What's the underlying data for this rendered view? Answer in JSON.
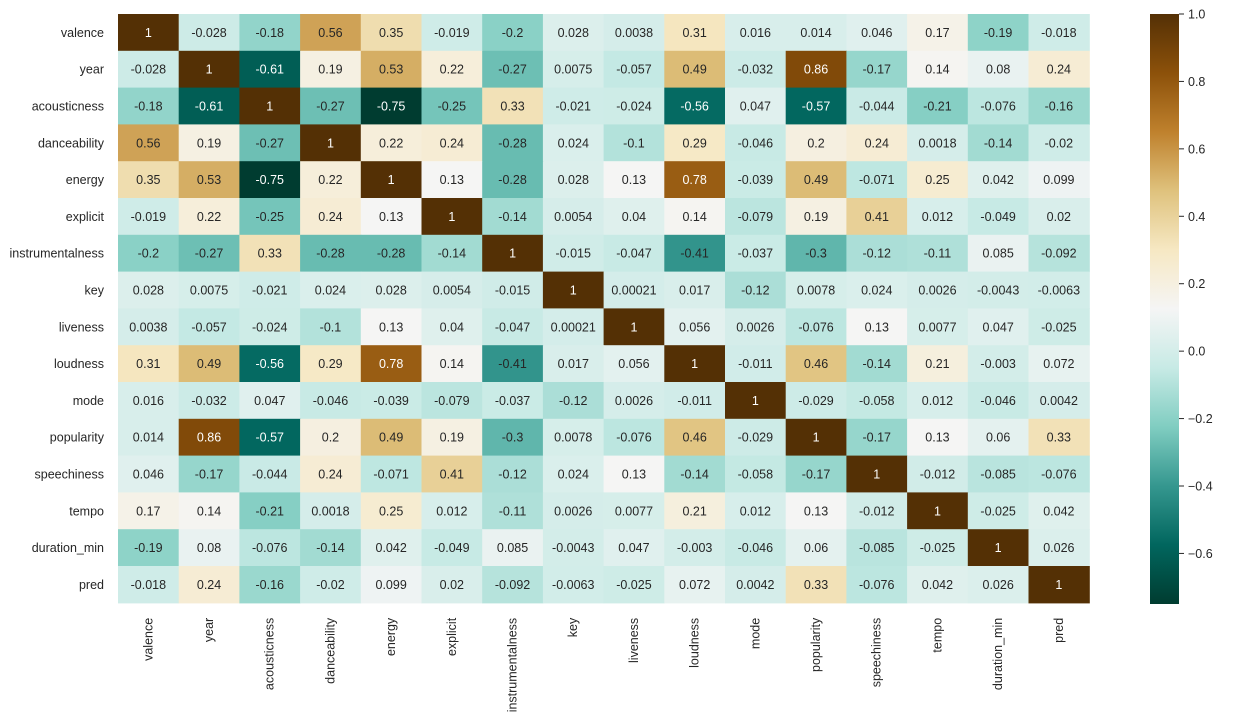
{
  "chart_data": {
    "type": "heatmap",
    "title": "",
    "colormap": "BrBG_r",
    "vmin": -0.75,
    "vmax": 1.0,
    "annotated": true,
    "legend": "colorbar-right",
    "labels": [
      "valence",
      "year",
      "acousticness",
      "danceability",
      "energy",
      "explicit",
      "instrumentalness",
      "key",
      "liveness",
      "loudness",
      "mode",
      "popularity",
      "speechiness",
      "tempo",
      "duration_min",
      "pred"
    ],
    "matrix": [
      [
        "1",
        "-0.028",
        "-0.18",
        "0.56",
        "0.35",
        "-0.019",
        "-0.2",
        "0.028",
        "0.0038",
        "0.31",
        "0.016",
        "0.014",
        "0.046",
        "0.17",
        "-0.19",
        "-0.018"
      ],
      [
        "-0.028",
        "1",
        "-0.61",
        "0.19",
        "0.53",
        "0.22",
        "-0.27",
        "0.0075",
        "-0.057",
        "0.49",
        "-0.032",
        "0.86",
        "-0.17",
        "0.14",
        "0.08",
        "0.24"
      ],
      [
        "-0.18",
        "-0.61",
        "1",
        "-0.27",
        "-0.75",
        "-0.25",
        "0.33",
        "-0.021",
        "-0.024",
        "-0.56",
        "0.047",
        "-0.57",
        "-0.044",
        "-0.21",
        "-0.076",
        "-0.16"
      ],
      [
        "0.56",
        "0.19",
        "-0.27",
        "1",
        "0.22",
        "0.24",
        "-0.28",
        "0.024",
        "-0.1",
        "0.29",
        "-0.046",
        "0.2",
        "0.24",
        "0.0018",
        "-0.14",
        "-0.02"
      ],
      [
        "0.35",
        "0.53",
        "-0.75",
        "0.22",
        "1",
        "0.13",
        "-0.28",
        "0.028",
        "0.13",
        "0.78",
        "-0.039",
        "0.49",
        "-0.071",
        "0.25",
        "0.042",
        "0.099"
      ],
      [
        "-0.019",
        "0.22",
        "-0.25",
        "0.24",
        "0.13",
        "1",
        "-0.14",
        "0.0054",
        "0.04",
        "0.14",
        "-0.079",
        "0.19",
        "0.41",
        "0.012",
        "-0.049",
        "0.02"
      ],
      [
        "-0.2",
        "-0.27",
        "0.33",
        "-0.28",
        "-0.28",
        "-0.14",
        "1",
        "-0.015",
        "-0.047",
        "-0.41",
        "-0.037",
        "-0.3",
        "-0.12",
        "-0.11",
        "0.085",
        "-0.092"
      ],
      [
        "0.028",
        "0.0075",
        "-0.021",
        "0.024",
        "0.028",
        "0.0054",
        "-0.015",
        "1",
        "0.00021",
        "0.017",
        "-0.12",
        "0.0078",
        "0.024",
        "0.0026",
        "-0.0043",
        "-0.0063"
      ],
      [
        "0.0038",
        "-0.057",
        "-0.024",
        "-0.1",
        "0.13",
        "0.04",
        "-0.047",
        "0.00021",
        "1",
        "0.056",
        "0.0026",
        "-0.076",
        "0.13",
        "0.0077",
        "0.047",
        "-0.025"
      ],
      [
        "0.31",
        "0.49",
        "-0.56",
        "0.29",
        "0.78",
        "0.14",
        "-0.41",
        "0.017",
        "0.056",
        "1",
        "-0.011",
        "0.46",
        "-0.14",
        "0.21",
        "-0.003",
        "0.072"
      ],
      [
        "0.016",
        "-0.032",
        "0.047",
        "-0.046",
        "-0.039",
        "-0.079",
        "-0.037",
        "-0.12",
        "0.0026",
        "-0.011",
        "1",
        "-0.029",
        "-0.058",
        "0.012",
        "-0.046",
        "0.0042"
      ],
      [
        "0.014",
        "0.86",
        "-0.57",
        "0.2",
        "0.49",
        "0.19",
        "-0.3",
        "0.0078",
        "-0.076",
        "0.46",
        "-0.029",
        "1",
        "-0.17",
        "0.13",
        "0.06",
        "0.33"
      ],
      [
        "0.046",
        "-0.17",
        "-0.044",
        "0.24",
        "-0.071",
        "0.41",
        "-0.12",
        "0.024",
        "0.13",
        "-0.14",
        "-0.058",
        "-0.17",
        "1",
        "-0.012",
        "-0.085",
        "-0.076"
      ],
      [
        "0.17",
        "0.14",
        "-0.21",
        "0.0018",
        "0.25",
        "0.012",
        "-0.11",
        "0.0026",
        "0.0077",
        "0.21",
        "0.012",
        "0.13",
        "-0.012",
        "1",
        "-0.025",
        "0.042"
      ],
      [
        "-0.19",
        "0.08",
        "-0.076",
        "-0.14",
        "0.042",
        "-0.049",
        "0.085",
        "-0.0043",
        "0.047",
        "-0.003",
        "-0.046",
        "0.06",
        "-0.085",
        "-0.025",
        "1",
        "0.026"
      ],
      [
        "-0.018",
        "0.24",
        "-0.16",
        "-0.02",
        "0.099",
        "0.02",
        "-0.092",
        "-0.0063",
        "-0.025",
        "0.072",
        "0.0042",
        "0.33",
        "-0.076",
        "0.042",
        "0.026",
        "1"
      ]
    ],
    "colorbar_ticks": [
      {
        "value": 1.0,
        "label": "1.0"
      },
      {
        "value": 0.8,
        "label": "0.8"
      },
      {
        "value": 0.6,
        "label": "0.6"
      },
      {
        "value": 0.4,
        "label": "0.4"
      },
      {
        "value": 0.2,
        "label": "0.2"
      },
      {
        "value": 0.0,
        "label": "0.0"
      },
      {
        "value": -0.2,
        "label": "−0.2"
      },
      {
        "value": -0.4,
        "label": "−0.4"
      },
      {
        "value": -0.6,
        "label": "−0.6"
      }
    ],
    "colormap_stops": [
      {
        "v": 0.0,
        "c": "#003c30"
      },
      {
        "v": 0.1,
        "c": "#01665e"
      },
      {
        "v": 0.2,
        "c": "#35978f"
      },
      {
        "v": 0.3,
        "c": "#80cdc1"
      },
      {
        "v": 0.4,
        "c": "#c7eae5"
      },
      {
        "v": 0.5,
        "c": "#f5f5f5"
      },
      {
        "v": 0.6,
        "c": "#f6e8c3"
      },
      {
        "v": 0.7,
        "c": "#dfc27d"
      },
      {
        "v": 0.8,
        "c": "#bf812d"
      },
      {
        "v": 0.9,
        "c": "#8c510a"
      },
      {
        "v": 1.0,
        "c": "#543005"
      }
    ]
  }
}
